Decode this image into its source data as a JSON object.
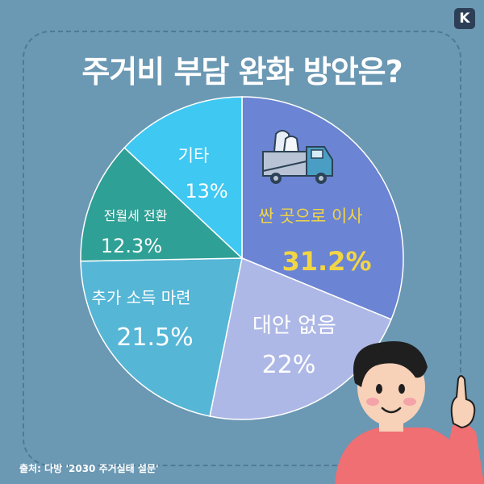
{
  "brand": {
    "badge_letter": "K"
  },
  "title": "주거비 부담 완화 방안은?",
  "source": "출처: 다방 '2030 주거실태 설문'",
  "chart_data": {
    "type": "pie",
    "title": "주거비 부담 완화 방안은?",
    "start": "12 o'clock",
    "direction": "clockwise",
    "legend": "none",
    "slices": [
      {
        "label": "싼 곳으로 이사",
        "value": 31.2,
        "value_text": "31.2%",
        "color": "#6b84d3",
        "label_color": "#f2d544",
        "value_color": "#f2d544"
      },
      {
        "label": "대안 없음",
        "value": 22,
        "value_text": "22%",
        "color": "#aeb8e6",
        "label_color": "#ffffff",
        "value_color": "#ffffff"
      },
      {
        "label": "추가 소득 마련",
        "value": 21.5,
        "value_text": "21.5%",
        "color": "#55b6d6",
        "label_color": "#ffffff",
        "value_color": "#ffffff"
      },
      {
        "label": "전월세 전환",
        "value": 12.3,
        "value_text": "12.3%",
        "color": "#2fa095",
        "label_color": "#ffffff",
        "value_color": "#ffffff"
      },
      {
        "label": "기타",
        "value": 13,
        "value_text": "13%",
        "color": "#3fc8f2",
        "label_color": "#ffffff",
        "value_color": "#ffffff"
      }
    ]
  },
  "icons": [
    "truck-icon",
    "person-illustration",
    "brand-k-icon"
  ]
}
